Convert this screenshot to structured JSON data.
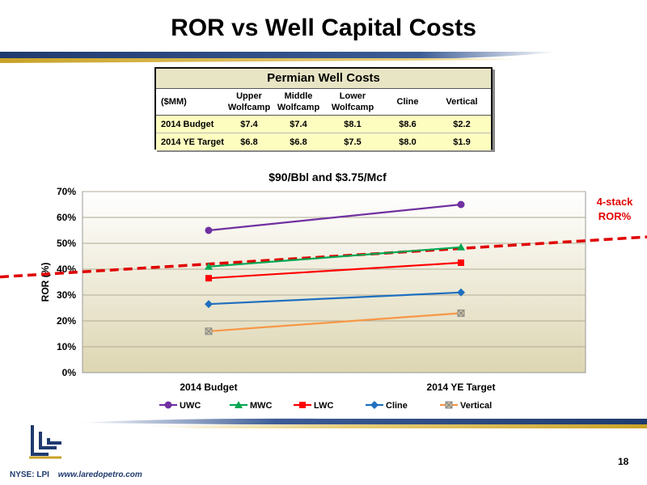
{
  "page": {
    "title": "ROR vs Well Capital Costs",
    "page_number": "18",
    "footer_ticker": "NYSE: LPI",
    "footer_url": "www.laredopetro.com"
  },
  "cost_table": {
    "title": "Permian Well Costs",
    "unit": "($MM)",
    "columns": [
      {
        "line1": "Upper",
        "line2": "Wolfcamp"
      },
      {
        "line1": "Middle",
        "line2": "Wolfcamp"
      },
      {
        "line1": "Lower",
        "line2": "Wolfcamp"
      },
      {
        "line1": "",
        "line2": "Cline"
      },
      {
        "line1": "",
        "line2": "Vertical"
      }
    ],
    "rows": [
      {
        "label": "2014 Budget",
        "values": [
          "$7.4",
          "$7.4",
          "$8.1",
          "$8.6",
          "$2.2"
        ]
      },
      {
        "label": "2014 YE Target",
        "values": [
          "$6.8",
          "$6.8",
          "$7.5",
          "$8.0",
          "$1.9"
        ]
      }
    ]
  },
  "chart_data": {
    "type": "line",
    "title": "$90/Bbl and $3.75/Mcf",
    "ylabel": "ROR (%)",
    "xlabel": "",
    "categories": [
      "2014 Budget",
      "2014 YE Target"
    ],
    "ylim": [
      0,
      70
    ],
    "yticks": [
      0,
      10,
      20,
      30,
      40,
      50,
      60,
      70
    ],
    "ytick_labels": [
      "0%",
      "10%",
      "20%",
      "30%",
      "40%",
      "50%",
      "60%",
      "70%"
    ],
    "grid": true,
    "legend": "bottom",
    "series": [
      {
        "name": "UWC",
        "values": [
          55,
          65
        ],
        "color": "#7030a0",
        "marker": "circle"
      },
      {
        "name": "MWC",
        "values": [
          41,
          48.5
        ],
        "color": "#00a651",
        "marker": "triangle"
      },
      {
        "name": "LWC",
        "values": [
          36.5,
          42.5
        ],
        "color": "#ff0000",
        "marker": "square"
      },
      {
        "name": "Cline",
        "values": [
          26.5,
          31
        ],
        "color": "#1f6fbf",
        "marker": "diamond"
      },
      {
        "name": "Vertical",
        "values": [
          16,
          23
        ],
        "color": "#f79646",
        "marker": "x-square"
      }
    ],
    "annotation": {
      "label_line1": "4-stack",
      "label_line2": "ROR%",
      "color": "#e00000",
      "style": "dashed",
      "start_value": 37,
      "end_value": 51
    }
  }
}
